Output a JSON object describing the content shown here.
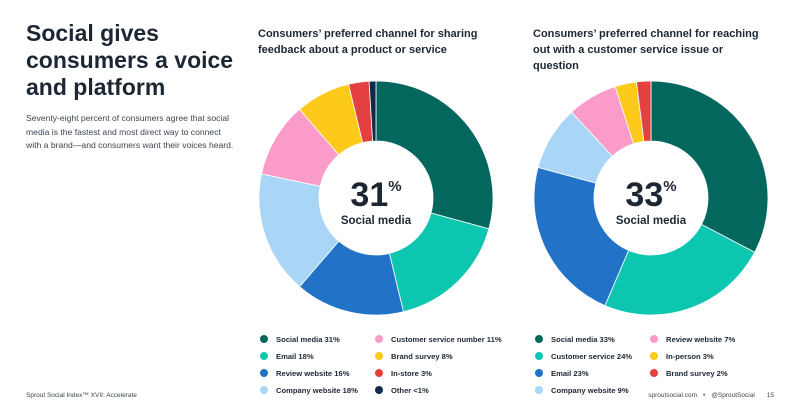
{
  "left": {
    "headline": "Social gives consumers a voice and platform",
    "body": "Seventy-eight percent of consumers agree that social media is the fastest and most direct way to connect with a brand—and consumers want their voices heard."
  },
  "footer": {
    "left": "Sprout Social Index™ XVII: Accelerate",
    "site": "sproutsocial.com",
    "sep": "•",
    "handle": "@SproutSocial",
    "page": "15"
  },
  "chart_data": [
    {
      "type": "pie",
      "title": "Consumers’ preferred channel for sharing feedback about a product or service",
      "center_value": "31",
      "center_unit": "%",
      "center_label": "Social media",
      "series": [
        {
          "name": "Social media",
          "value": 31,
          "label": "Social media 31%",
          "color": "#04675d"
        },
        {
          "name": "Email",
          "value": 18,
          "label": "Email 18%",
          "color": "#0dc6b0"
        },
        {
          "name": "Review website",
          "value": 16,
          "label": "Review website 16%",
          "color": "#2273c8"
        },
        {
          "name": "Company website",
          "value": 18,
          "label": "Company website 18%",
          "color": "#a9d6f6"
        },
        {
          "name": "Customer service number",
          "value": 11,
          "label": "Customer service number 11%",
          "color": "#fb9bc9"
        },
        {
          "name": "Brand survey",
          "value": 8,
          "label": "Brand survey 8%",
          "color": "#fdc91b"
        },
        {
          "name": "In-store",
          "value": 3,
          "label": "In-store 3%",
          "color": "#e3403f"
        },
        {
          "name": "Other",
          "value": 1,
          "label": "Other <1%",
          "color": "#0f2a4b"
        }
      ],
      "legend_columns": [
        [
          0,
          1,
          2,
          3
        ],
        [
          4,
          5,
          6,
          7
        ]
      ]
    },
    {
      "type": "pie",
      "title": "Consumers’ preferred channel for reaching out with a customer service issue or question",
      "center_value": "33",
      "center_unit": "%",
      "center_label": "Social media",
      "series": [
        {
          "name": "Social media",
          "value": 33,
          "label": "Social media 33%",
          "color": "#04675d"
        },
        {
          "name": "Customer service",
          "value": 24,
          "label": "Customer service 24%",
          "color": "#0dc6b0"
        },
        {
          "name": "Email",
          "value": 23,
          "label": "Email 23%",
          "color": "#2273c8"
        },
        {
          "name": "Company website",
          "value": 9,
          "label": "Company website 9%",
          "color": "#a9d6f6"
        },
        {
          "name": "Review website",
          "value": 7,
          "label": "Review website 7%",
          "color": "#fb9bc9"
        },
        {
          "name": "In-person",
          "value": 3,
          "label": "In-person 3%",
          "color": "#fdc91b"
        },
        {
          "name": "Brand survey",
          "value": 2,
          "label": "Brand survey 2%",
          "color": "#e3403f"
        }
      ],
      "legend_columns": [
        [
          0,
          1,
          2,
          3
        ],
        [
          4,
          5,
          6
        ]
      ]
    }
  ]
}
